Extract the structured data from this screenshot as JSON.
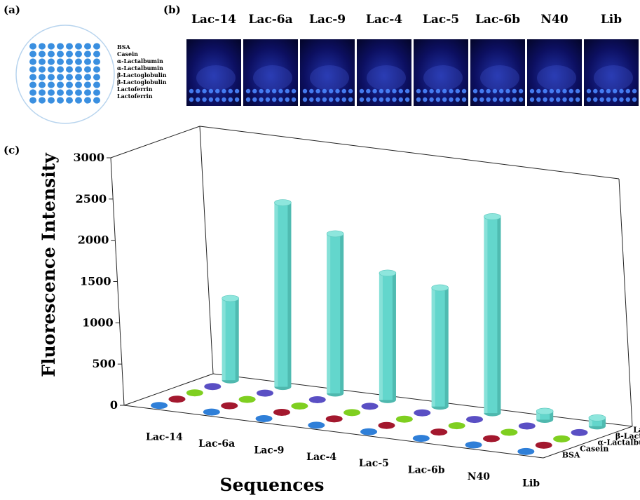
{
  "panels": {
    "a": "(a)",
    "b": "(b)",
    "c": "(c)"
  },
  "slide_legend": [
    "BSA",
    "Casein",
    "α-Lactalbumin",
    "α-Lactalbumin",
    "β-Lactoglobulin",
    "β-Lactoglobulin",
    "Lactoferrin",
    "Lactoferrin"
  ],
  "image_labels": [
    "Lac-14",
    "Lac-6a",
    "Lac-9",
    "Lac-4",
    "Lac-5",
    "Lac-6b",
    "N40",
    "Lib"
  ],
  "colors": {
    "slide_spot": "#3a8fe0",
    "bar": "#63d6cc",
    "image_bg": "#0c0f60",
    "image_spot": "#4a86ff",
    "disc_bsa": "#2f7fd8",
    "disc_casein": "#a3182e",
    "disc_alactalbumin": "#7fcf20",
    "disc_blactoglobulin": "#5a4fc4",
    "disc_lactoferrin": "#63d6cc"
  },
  "chart_data": {
    "type": "bar",
    "xlabel": "Sequences",
    "ylabel": "Fluorescence Intensity",
    "categories": [
      "Lac-14",
      "Lac-6a",
      "Lac-9",
      "Lac-4",
      "Lac-5",
      "Lac-6b",
      "N40",
      "Lib"
    ],
    "depth_labels": [
      "BSA",
      "Casein",
      "α-Lactalbumin",
      "β-Lactoglobulin",
      "Lactoferrin"
    ],
    "ylim": [
      0,
      3000
    ],
    "yticks": [
      "0",
      "500",
      "1000",
      "1500",
      "2000",
      "2500",
      "3000"
    ],
    "series": [
      {
        "name": "BSA",
        "values": [
          0,
          0,
          0,
          0,
          0,
          0,
          0,
          0
        ]
      },
      {
        "name": "Casein",
        "values": [
          0,
          0,
          0,
          0,
          0,
          0,
          0,
          0
        ]
      },
      {
        "name": "α-Lactalbumin",
        "values": [
          0,
          0,
          0,
          0,
          0,
          0,
          0,
          0
        ]
      },
      {
        "name": "β-Lactoglobulin",
        "values": [
          0,
          0,
          0,
          0,
          0,
          0,
          0,
          0
        ]
      },
      {
        "name": "Lactoferrin",
        "values": [
          1000,
          2250,
          1950,
          1550,
          1450,
          2400,
          60,
          40
        ]
      }
    ]
  }
}
